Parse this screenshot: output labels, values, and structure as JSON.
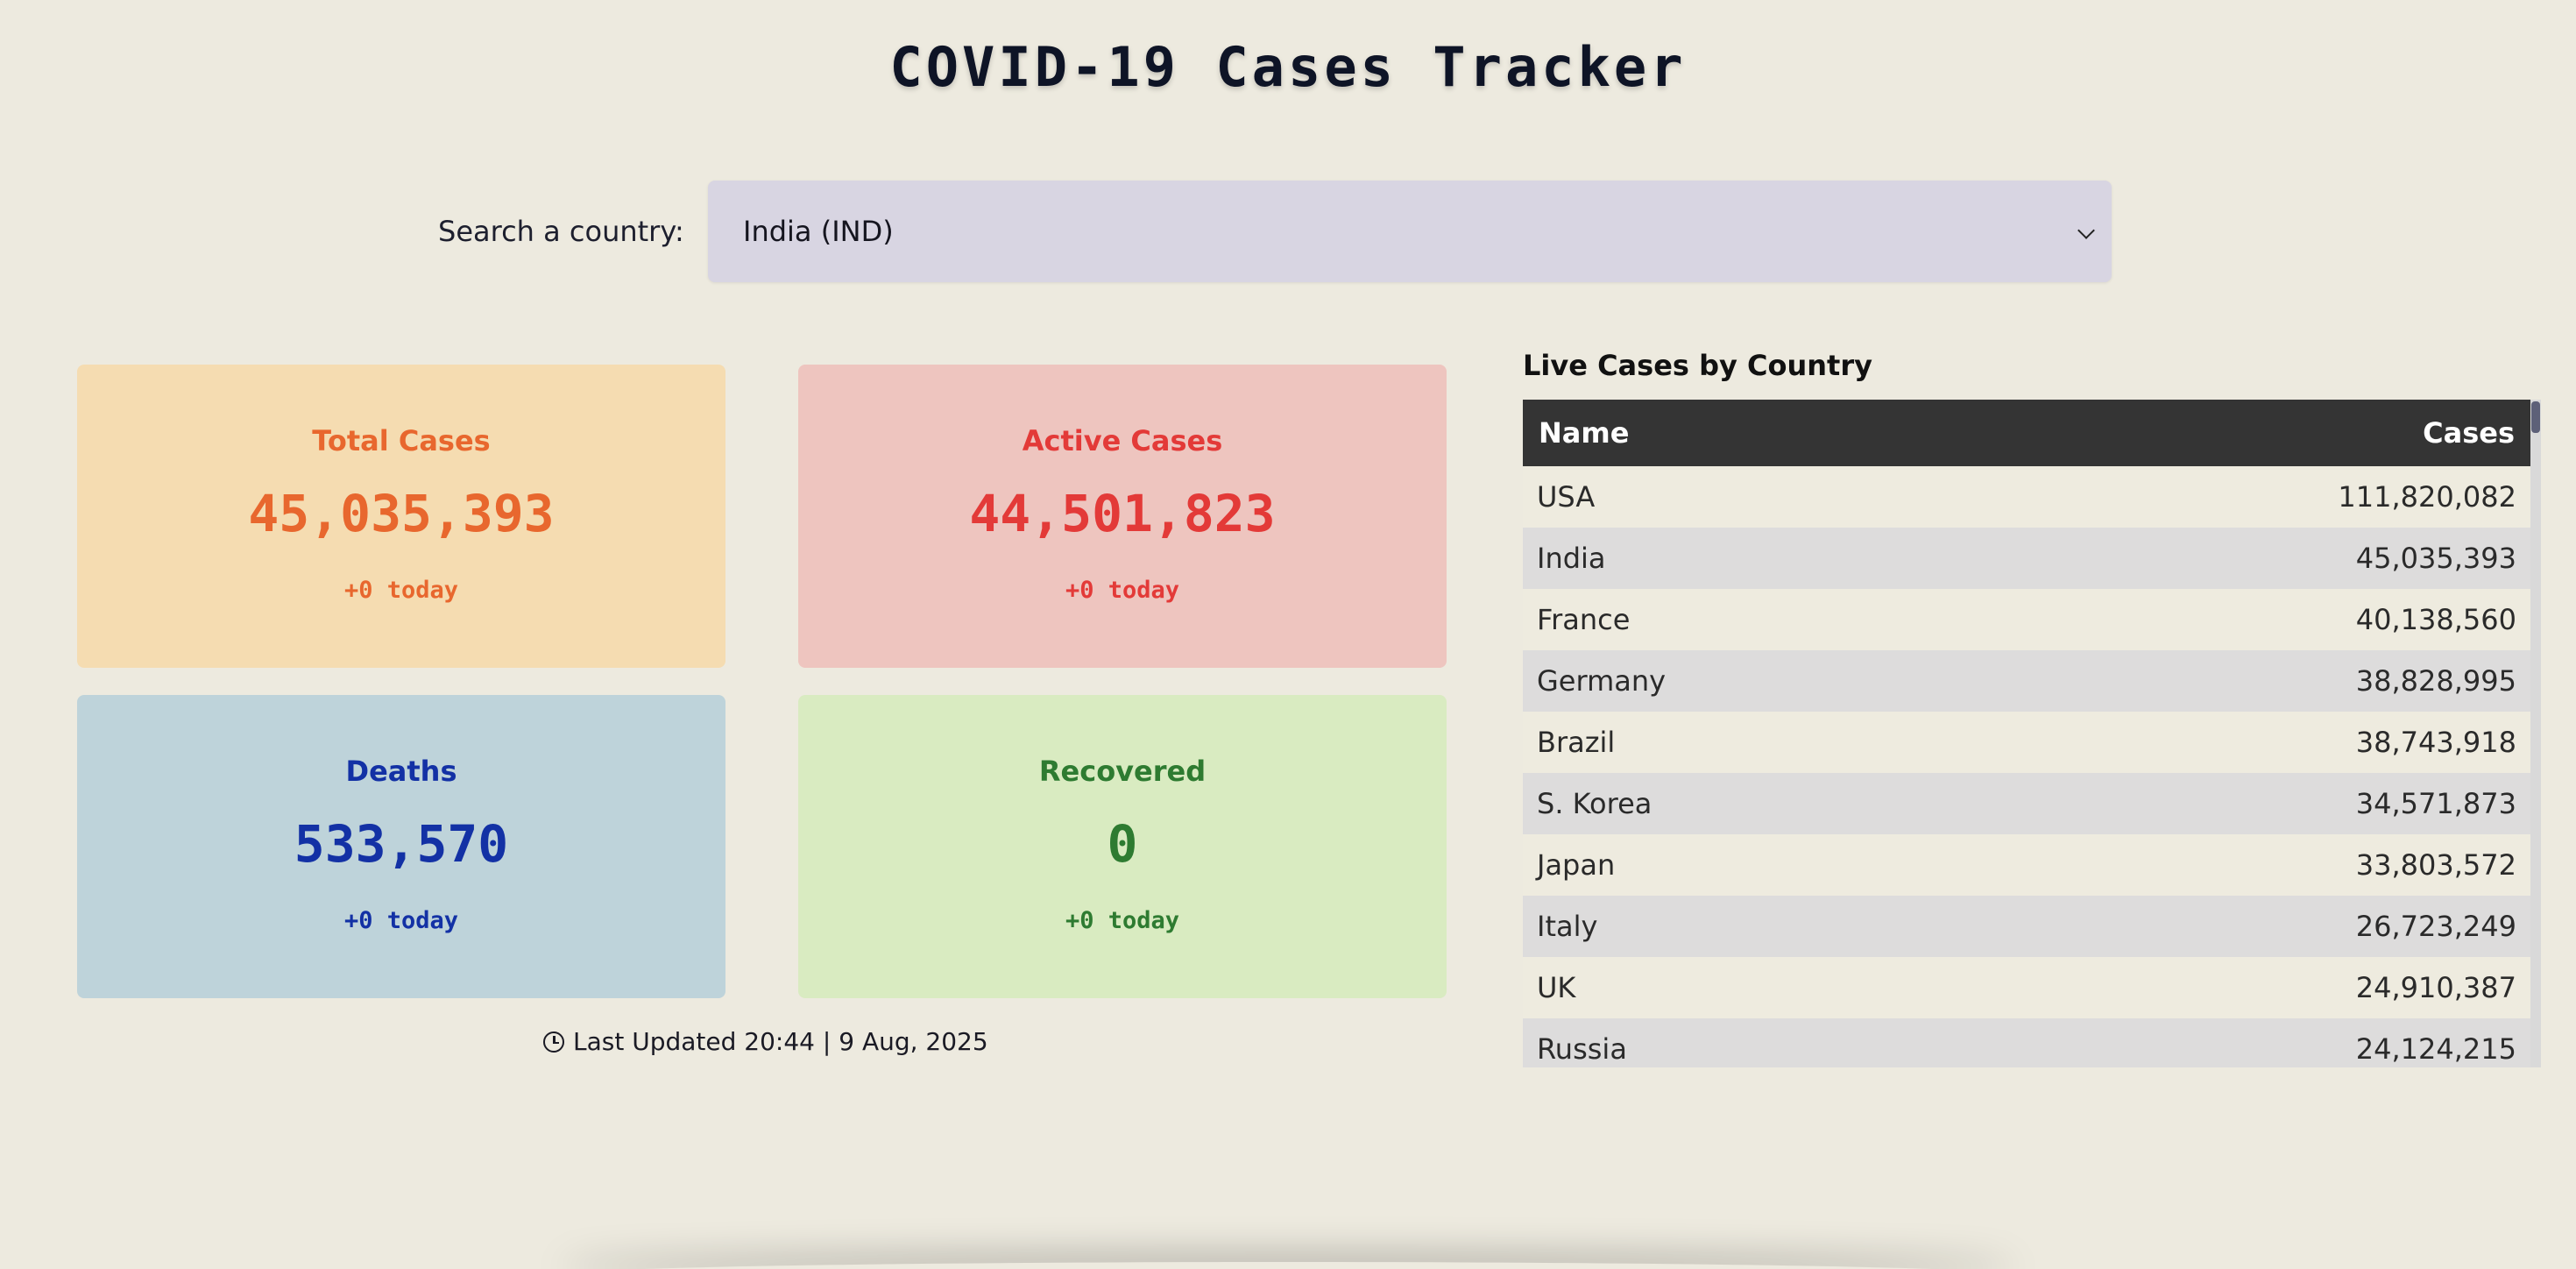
{
  "title": "COVID-19 Cases Tracker",
  "search": {
    "label": "Search a country:",
    "selected": "India (IND)"
  },
  "cards": {
    "total": {
      "label": "Total Cases",
      "value": "45,035,393",
      "today": "+0 today",
      "bg": "#f5dcb1",
      "color": "#e8672e"
    },
    "active": {
      "label": "Active Cases",
      "value": "44,501,823",
      "today": "+0 today",
      "bg": "#eec5bf",
      "color": "#e33a38"
    },
    "deaths": {
      "label": "Deaths",
      "value": "533,570",
      "today": "+0 today",
      "bg": "#bed3da",
      "color": "#1331a5"
    },
    "recovered": {
      "label": "Recovered",
      "value": "0",
      "today": "+0 today",
      "bg": "#d9ebc1",
      "color": "#2e7b31"
    }
  },
  "last_updated": "Last Updated 20:44 | 9 Aug, 2025",
  "table": {
    "title": "Live Cases by Country",
    "headers": {
      "name": "Name",
      "cases": "Cases"
    },
    "rows": [
      {
        "name": "USA",
        "cases": "111,820,082"
      },
      {
        "name": "India",
        "cases": "45,035,393"
      },
      {
        "name": "France",
        "cases": "40,138,560"
      },
      {
        "name": "Germany",
        "cases": "38,828,995"
      },
      {
        "name": "Brazil",
        "cases": "38,743,918"
      },
      {
        "name": "S. Korea",
        "cases": "34,571,873"
      },
      {
        "name": "Japan",
        "cases": "33,803,572"
      },
      {
        "name": "Italy",
        "cases": "26,723,249"
      },
      {
        "name": "UK",
        "cases": "24,910,387"
      },
      {
        "name": "Russia",
        "cases": "24,124,215"
      }
    ]
  }
}
